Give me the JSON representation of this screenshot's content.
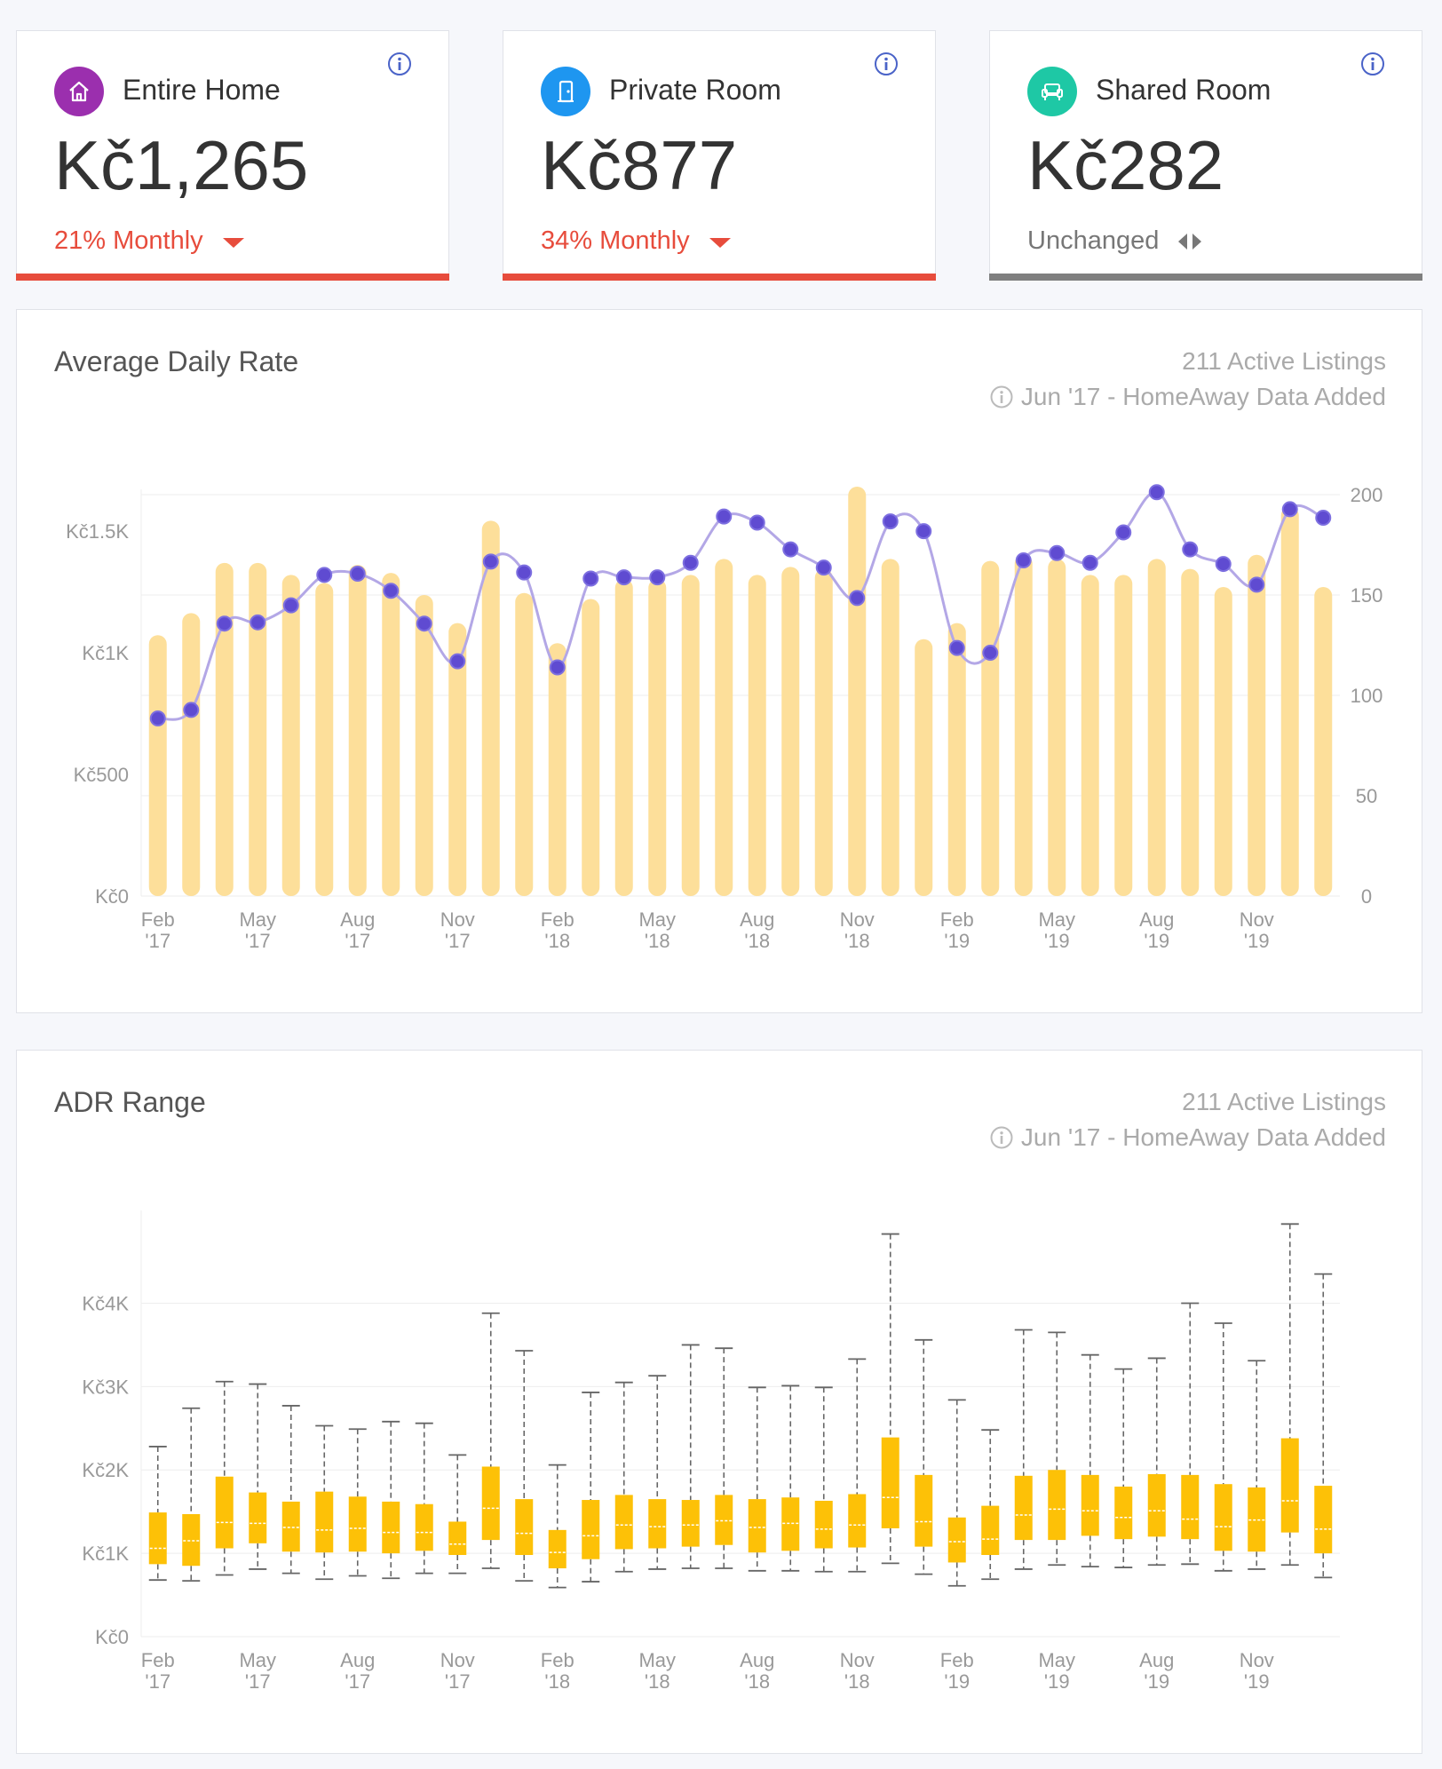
{
  "cards": [
    {
      "title": "Entire Home",
      "value": "Kč1,265",
      "change": "21% Monthly",
      "trend": "down",
      "accent": "#9b2fae",
      "bar": "#e74c3c",
      "change_color": "#e74c3c",
      "icon": "home-icon"
    },
    {
      "title": "Private Room",
      "value": "Kč877",
      "change": "34% Monthly",
      "trend": "down",
      "accent": "#1e96f0",
      "bar": "#e74c3c",
      "change_color": "#e74c3c",
      "icon": "door-icon"
    },
    {
      "title": "Shared Room",
      "value": "Kč282",
      "change": "Unchanged",
      "trend": "flat",
      "accent": "#1ec8a5",
      "bar": "#7f7f7f",
      "change_color": "#777",
      "icon": "sofa-icon"
    }
  ],
  "adr_panel": {
    "title": "Average Daily Rate",
    "active_listings": "211 Active Listings",
    "note": "Jun '17 - HomeAway Data Added"
  },
  "range_panel": {
    "title": "ADR Range",
    "active_listings": "211 Active Listings",
    "note": "Jun '17 - HomeAway Data Added"
  },
  "chart_data": [
    {
      "type": "bar",
      "x_ticks": [
        [
          "Feb",
          "'17"
        ],
        [
          "May",
          "'17"
        ],
        [
          "Aug",
          "'17"
        ],
        [
          "Nov",
          "'17"
        ],
        [
          "Feb",
          "'18"
        ],
        [
          "May",
          "'18"
        ],
        [
          "Aug",
          "'18"
        ],
        [
          "Nov",
          "'18"
        ],
        [
          "Feb",
          "'19"
        ],
        [
          "May",
          "'19"
        ],
        [
          "Aug",
          "'19"
        ],
        [
          "Nov",
          "'19"
        ]
      ],
      "y_left_ticks": [
        "Kč0",
        "Kč500",
        "Kč1K",
        "Kč1.5K"
      ],
      "y_left_range": [
        0,
        1650
      ],
      "y_right_ticks": [
        "0",
        "50",
        "100",
        "150",
        "200"
      ],
      "y_right_range": [
        0,
        200
      ],
      "months": [
        "Feb '17",
        "Mar '17",
        "Apr '17",
        "May '17",
        "Jun '17",
        "Jul '17",
        "Aug '17",
        "Sep '17",
        "Oct '17",
        "Nov '17",
        "Dec '17",
        "Jan '18",
        "Feb '18",
        "Mar '18",
        "Apr '18",
        "May '18",
        "Jun '18",
        "Jul '18",
        "Aug '18",
        "Sep '18",
        "Oct '18",
        "Nov '18",
        "Dec '18",
        "Jan '19",
        "Feb '19",
        "Mar '19",
        "Apr '19",
        "May '19",
        "Jun '19",
        "Jul '19",
        "Aug '19",
        "Sep '19",
        "Oct '19",
        "Nov '19",
        "Dec '19",
        "Jan '20"
      ],
      "series": [
        {
          "type": "bar",
          "axis": "right",
          "color": "#fddf9a",
          "values": [
            130,
            141,
            166,
            166,
            160,
            156,
            165,
            161,
            150,
            136,
            187,
            151,
            126,
            148,
            158,
            158,
            160,
            168,
            160,
            164,
            163,
            204,
            168,
            128,
            136,
            167,
            170,
            168,
            160,
            160,
            168,
            163,
            154,
            170,
            194,
            154
          ]
        },
        {
          "type": "line",
          "axis": "left",
          "color": "#b3a7e6",
          "marker_color": "#5f4bd1",
          "values": [
            730,
            765,
            1120,
            1125,
            1195,
            1320,
            1325,
            1255,
            1120,
            965,
            1375,
            1330,
            940,
            1305,
            1310,
            1310,
            1370,
            1560,
            1535,
            1425,
            1350,
            1225,
            1540,
            1500,
            1020,
            1000,
            1380,
            1410,
            1370,
            1495,
            1660,
            1425,
            1365,
            1280,
            1590,
            1555
          ]
        }
      ]
    },
    {
      "type": "box",
      "x_ticks": [
        [
          "Feb",
          "'17"
        ],
        [
          "May",
          "'17"
        ],
        [
          "Aug",
          "'17"
        ],
        [
          "Nov",
          "'17"
        ],
        [
          "Feb",
          "'18"
        ],
        [
          "May",
          "'18"
        ],
        [
          "Aug",
          "'18"
        ],
        [
          "Nov",
          "'18"
        ],
        [
          "Feb",
          "'19"
        ],
        [
          "May",
          "'19"
        ],
        [
          "Aug",
          "'19"
        ],
        [
          "Nov",
          "'19"
        ]
      ],
      "y_ticks": [
        "Kč0",
        "Kč1K",
        "Kč2K",
        "Kč3K",
        "Kč4K"
      ],
      "y_range": [
        0,
        4900
      ],
      "color": "#fdc107",
      "boxes": [
        {
          "min": 680,
          "q1": 870,
          "median": 1060,
          "q3": 1490,
          "max": 2280
        },
        {
          "min": 670,
          "q1": 850,
          "median": 1150,
          "q3": 1470,
          "max": 2740
        },
        {
          "min": 740,
          "q1": 1060,
          "median": 1370,
          "q3": 1920,
          "max": 3060
        },
        {
          "min": 810,
          "q1": 1120,
          "median": 1360,
          "q3": 1730,
          "max": 3030
        },
        {
          "min": 760,
          "q1": 1020,
          "median": 1310,
          "q3": 1620,
          "max": 2770
        },
        {
          "min": 690,
          "q1": 1010,
          "median": 1280,
          "q3": 1740,
          "max": 2530
        },
        {
          "min": 730,
          "q1": 1020,
          "median": 1300,
          "q3": 1680,
          "max": 2490
        },
        {
          "min": 700,
          "q1": 1000,
          "median": 1250,
          "q3": 1620,
          "max": 2580
        },
        {
          "min": 760,
          "q1": 1030,
          "median": 1250,
          "q3": 1590,
          "max": 2560
        },
        {
          "min": 760,
          "q1": 980,
          "median": 1110,
          "q3": 1380,
          "max": 2180
        },
        {
          "min": 820,
          "q1": 1160,
          "median": 1540,
          "q3": 2040,
          "max": 3880
        },
        {
          "min": 670,
          "q1": 980,
          "median": 1240,
          "q3": 1650,
          "max": 3430
        },
        {
          "min": 590,
          "q1": 820,
          "median": 1010,
          "q3": 1280,
          "max": 2060
        },
        {
          "min": 660,
          "q1": 930,
          "median": 1210,
          "q3": 1640,
          "max": 2930
        },
        {
          "min": 780,
          "q1": 1050,
          "median": 1340,
          "q3": 1700,
          "max": 3050
        },
        {
          "min": 810,
          "q1": 1060,
          "median": 1320,
          "q3": 1650,
          "max": 3130
        },
        {
          "min": 820,
          "q1": 1080,
          "median": 1340,
          "q3": 1640,
          "max": 3500
        },
        {
          "min": 820,
          "q1": 1100,
          "median": 1390,
          "q3": 1700,
          "max": 3460
        },
        {
          "min": 790,
          "q1": 1010,
          "median": 1310,
          "q3": 1650,
          "max": 2990
        },
        {
          "min": 790,
          "q1": 1030,
          "median": 1360,
          "q3": 1670,
          "max": 3010
        },
        {
          "min": 780,
          "q1": 1060,
          "median": 1290,
          "q3": 1630,
          "max": 2990
        },
        {
          "min": 780,
          "q1": 1070,
          "median": 1340,
          "q3": 1710,
          "max": 3330
        },
        {
          "min": 880,
          "q1": 1300,
          "median": 1670,
          "q3": 2390,
          "max": 4830
        },
        {
          "min": 750,
          "q1": 1080,
          "median": 1380,
          "q3": 1940,
          "max": 3560
        },
        {
          "min": 610,
          "q1": 890,
          "median": 1140,
          "q3": 1430,
          "max": 2840
        },
        {
          "min": 690,
          "q1": 980,
          "median": 1170,
          "q3": 1570,
          "max": 2480
        },
        {
          "min": 810,
          "q1": 1160,
          "median": 1460,
          "q3": 1930,
          "max": 3680
        },
        {
          "min": 860,
          "q1": 1160,
          "median": 1530,
          "q3": 2000,
          "max": 3650
        },
        {
          "min": 840,
          "q1": 1210,
          "median": 1510,
          "q3": 1940,
          "max": 3380
        },
        {
          "min": 830,
          "q1": 1170,
          "median": 1430,
          "q3": 1800,
          "max": 3210
        },
        {
          "min": 860,
          "q1": 1200,
          "median": 1510,
          "q3": 1950,
          "max": 3340
        },
        {
          "min": 870,
          "q1": 1170,
          "median": 1410,
          "q3": 1940,
          "max": 4000
        },
        {
          "min": 790,
          "q1": 1030,
          "median": 1320,
          "q3": 1830,
          "max": 3760
        },
        {
          "min": 810,
          "q1": 1020,
          "median": 1400,
          "q3": 1790,
          "max": 3310
        },
        {
          "min": 860,
          "q1": 1250,
          "median": 1630,
          "q3": 2380,
          "max": 4950
        },
        {
          "min": 710,
          "q1": 1000,
          "median": 1290,
          "q3": 1810,
          "max": 4350
        }
      ]
    }
  ]
}
